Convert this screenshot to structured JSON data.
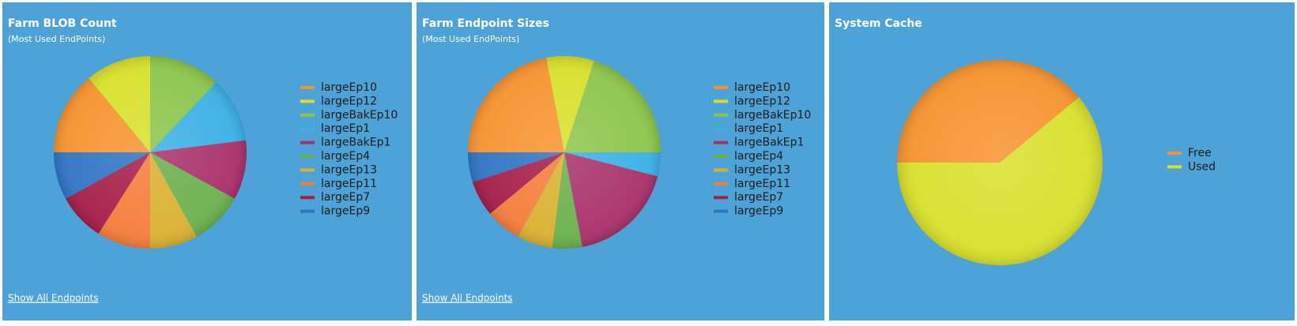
{
  "chart_data": [
    {
      "type": "pie",
      "title": "Farm BLOB Count",
      "subtitle": "(Most Used EndPoints)",
      "link": "Show All Endpoints",
      "categories": [
        "largeEp10",
        "largeEp12",
        "largeBakEp10",
        "largeEp1",
        "largeBakEp1",
        "largeEp4",
        "largeEp13",
        "largeEp11",
        "largeEp7",
        "largeEp9"
      ],
      "values": [
        14,
        11,
        12,
        11,
        10,
        9,
        8,
        9,
        8,
        8
      ],
      "colors": [
        "#f7932e",
        "#d8e02a",
        "#8cc54a",
        "#3ab0e6",
        "#a8306a",
        "#6ab04c",
        "#d9b02e",
        "#f57c3a",
        "#a51d48",
        "#2f74c4"
      ]
    },
    {
      "type": "pie",
      "title": "Farm Endpoint Sizes",
      "subtitle": "(Most Used EndPoints)",
      "link": "Show All Endpoints",
      "categories": [
        "largeEp10",
        "largeEp12",
        "largeBakEp10",
        "largeEp1",
        "largeBakEp1",
        "largeEp4",
        "largeEp13",
        "largeEp11",
        "largeEp7",
        "largeEp9"
      ],
      "values": [
        22,
        8,
        20,
        4,
        18,
        5,
        6,
        6,
        6,
        5
      ],
      "colors": [
        "#f7932e",
        "#d8e02a",
        "#8cc54a",
        "#3ab0e6",
        "#a8306a",
        "#6ab04c",
        "#d9b02e",
        "#f57c3a",
        "#a51d48",
        "#2f74c4"
      ]
    },
    {
      "type": "pie",
      "title": "System Cache",
      "categories": [
        "Free",
        "Used"
      ],
      "values": [
        39,
        61
      ],
      "colors": [
        "#f7932e",
        "#d8e02a"
      ]
    }
  ]
}
